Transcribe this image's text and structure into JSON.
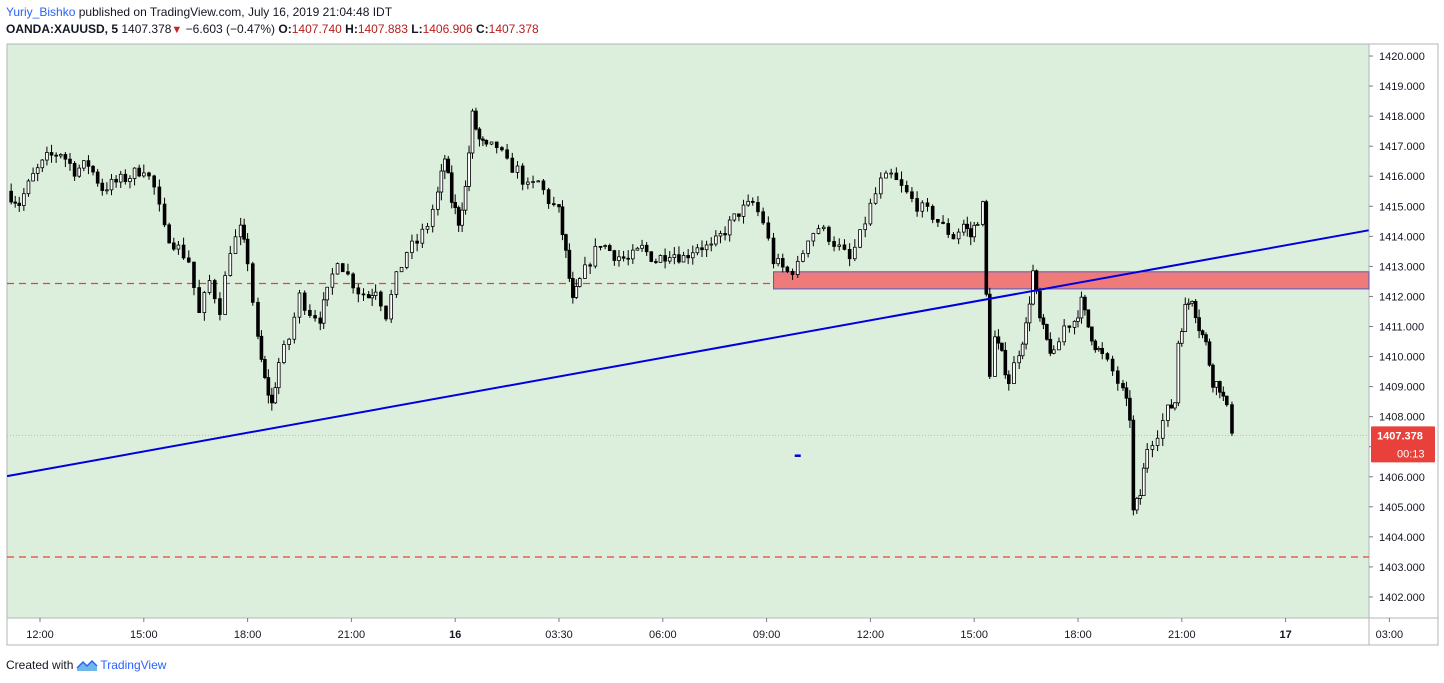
{
  "header": {
    "author": "Yuriy_Bishko",
    "published_text": "published on TradingView.com, July 16, 2019 21:04:48 IDT",
    "symbol": "OANDA:XAUUSD, 5",
    "last": "1407.378",
    "change": "−6.603 (−0.47%)",
    "open_label": "O:",
    "open": "1407.740",
    "high_label": "H:",
    "high": "1407.883",
    "low_label": "L:",
    "low": "1406.906",
    "close_label": "C:",
    "close": "1407.378"
  },
  "footer": {
    "created_with": "Created with",
    "brand": "TradingView",
    "logo_icon": "tradingview-logo-icon"
  },
  "colors": {
    "background": "#dcefdc",
    "candle": "#000000",
    "trendline": "#0000dd",
    "level_line": "#e8403a",
    "zone_fill": "#ee7a7a",
    "zone_border": "#4a5cc7",
    "price_tag": "#e8403a"
  },
  "chart_data": {
    "type": "candlestick",
    "symbol": "OANDA:XAUUSD",
    "timeframe": "5",
    "ylim": [
      1401.3,
      1420.4
    ],
    "y_ticks": [
      "1402.000",
      "1403.000",
      "1404.000",
      "1405.000",
      "1406.000",
      "1407.000",
      "1408.000",
      "1409.000",
      "1410.000",
      "1411.000",
      "1412.000",
      "1413.000",
      "1414.000",
      "1415.000",
      "1416.000",
      "1417.000",
      "1418.000",
      "1419.000",
      "1420.000"
    ],
    "x_ticks": [
      {
        "label": "12:00",
        "t": 0
      },
      {
        "label": "15:00",
        "t": 3
      },
      {
        "label": "18:00",
        "t": 6
      },
      {
        "label": "21:00",
        "t": 9
      },
      {
        "label": "16",
        "t": 12
      },
      {
        "label": "03:30",
        "t": 15
      },
      {
        "label": "06:00",
        "t": 18
      },
      {
        "label": "09:00",
        "t": 21
      },
      {
        "label": "12:00",
        "t": 24
      },
      {
        "label": "15:00",
        "t": 27
      },
      {
        "label": "18:00",
        "t": 30
      },
      {
        "label": "21:00",
        "t": 33
      },
      {
        "label": "17",
        "t": 36
      },
      {
        "label": "03:00",
        "t": 39
      }
    ],
    "current_price": "1407.378",
    "countdown": "00:13",
    "horizontal_levels": [
      1412.43,
      1403.33
    ],
    "resistance_zone": {
      "from_t": 21.2,
      "low": 1412.25,
      "high": 1412.82
    },
    "trendline": {
      "start": {
        "t": -0.95,
        "price": 1406.02
      },
      "end": {
        "t": 38.4,
        "price": 1414.2
      }
    },
    "marker": {
      "t": 21.9,
      "price": 1406.7
    },
    "path_points": [
      [
        -0.95,
        1415.5
      ],
      [
        -0.6,
        1415.1
      ],
      [
        -0.2,
        1416.0
      ],
      [
        0.2,
        1416.6
      ],
      [
        0.6,
        1416.8
      ],
      [
        1.0,
        1416.2
      ],
      [
        1.4,
        1416.4
      ],
      [
        1.8,
        1415.6
      ],
      [
        2.2,
        1415.8
      ],
      [
        2.6,
        1416.0
      ],
      [
        3.0,
        1416.3
      ],
      [
        3.3,
        1415.6
      ],
      [
        3.6,
        1414.2
      ],
      [
        4.0,
        1413.6
      ],
      [
        4.3,
        1413.2
      ],
      [
        4.6,
        1411.4
      ],
      [
        4.9,
        1412.5
      ],
      [
        5.2,
        1411.6
      ],
      [
        5.5,
        1413.6
      ],
      [
        5.8,
        1414.2
      ],
      [
        6.0,
        1413.2
      ],
      [
        6.3,
        1410.5
      ],
      [
        6.5,
        1409.2
      ],
      [
        6.7,
        1408.4
      ],
      [
        6.9,
        1409.8
      ],
      [
        7.2,
        1410.6
      ],
      [
        7.5,
        1412.0
      ],
      [
        7.8,
        1411.5
      ],
      [
        8.1,
        1411.3
      ],
      [
        8.3,
        1412.1
      ],
      [
        8.6,
        1413.3
      ],
      [
        8.9,
        1412.7
      ],
      [
        9.2,
        1412.2
      ],
      [
        9.5,
        1412.0
      ],
      [
        9.7,
        1412.3
      ],
      [
        10.0,
        1411.4
      ],
      [
        10.3,
        1412.6
      ],
      [
        10.6,
        1413.5
      ],
      [
        10.9,
        1413.8
      ],
      [
        11.2,
        1414.4
      ],
      [
        11.5,
        1415.4
      ],
      [
        11.7,
        1416.6
      ],
      [
        11.9,
        1415.2
      ],
      [
        12.1,
        1414.5
      ],
      [
        12.3,
        1415.6
      ],
      [
        12.5,
        1418.0
      ],
      [
        12.7,
        1417.2
      ],
      [
        12.9,
        1416.9
      ],
      [
        13.2,
        1417.0
      ],
      [
        13.5,
        1416.4
      ],
      [
        13.8,
        1416.2
      ],
      [
        14.1,
        1415.6
      ],
      [
        14.4,
        1415.8
      ],
      [
        14.7,
        1415.2
      ],
      [
        15.0,
        1414.8
      ],
      [
        15.2,
        1413.4
      ],
      [
        15.4,
        1411.8
      ],
      [
        15.6,
        1412.5
      ],
      [
        15.9,
        1413.2
      ],
      [
        16.2,
        1413.8
      ],
      [
        16.6,
        1413.4
      ],
      [
        17.0,
        1413.2
      ],
      [
        17.4,
        1413.6
      ],
      [
        17.8,
        1413.2
      ],
      [
        18.2,
        1413.5
      ],
      [
        18.6,
        1413.3
      ],
      [
        19.0,
        1413.7
      ],
      [
        19.4,
        1413.6
      ],
      [
        19.8,
        1414.2
      ],
      [
        20.2,
        1414.8
      ],
      [
        20.6,
        1415.1
      ],
      [
        20.9,
        1414.5
      ],
      [
        21.2,
        1413.2
      ],
      [
        21.6,
        1412.8
      ],
      [
        21.9,
        1413.0
      ],
      [
        22.2,
        1414.0
      ],
      [
        22.5,
        1414.3
      ],
      [
        22.8,
        1414.0
      ],
      [
        23.1,
        1413.6
      ],
      [
        23.4,
        1413.2
      ],
      [
        23.7,
        1414.0
      ],
      [
        24.0,
        1415.0
      ],
      [
        24.3,
        1415.8
      ],
      [
        24.6,
        1416.0
      ],
      [
        24.9,
        1415.6
      ],
      [
        25.2,
        1415.2
      ],
      [
        25.5,
        1414.9
      ],
      [
        25.8,
        1414.7
      ],
      [
        26.1,
        1414.3
      ],
      [
        26.4,
        1414.0
      ],
      [
        26.7,
        1414.4
      ],
      [
        26.9,
        1414.0
      ],
      [
        27.1,
        1414.6
      ],
      [
        27.25,
        1415.0
      ],
      [
        27.35,
        1412.0
      ],
      [
        27.45,
        1409.5
      ],
      [
        27.6,
        1410.6
      ],
      [
        27.8,
        1410.0
      ],
      [
        28.0,
        1409.2
      ],
      [
        28.3,
        1410.2
      ],
      [
        28.5,
        1411.0
      ],
      [
        28.7,
        1412.8
      ],
      [
        28.9,
        1411.2
      ],
      [
        29.1,
        1410.5
      ],
      [
        29.3,
        1410.0
      ],
      [
        29.6,
        1411.0
      ],
      [
        29.9,
        1411.2
      ],
      [
        30.1,
        1411.8
      ],
      [
        30.3,
        1411.0
      ],
      [
        30.5,
        1410.4
      ],
      [
        30.7,
        1410.0
      ],
      [
        31.0,
        1409.5
      ],
      [
        31.3,
        1408.8
      ],
      [
        31.5,
        1408.0
      ],
      [
        31.6,
        1404.8
      ],
      [
        31.8,
        1405.4
      ],
      [
        32.0,
        1407.0
      ],
      [
        32.3,
        1407.5
      ],
      [
        32.6,
        1408.2
      ],
      [
        32.8,
        1408.5
      ],
      [
        32.9,
        1410.5
      ],
      [
        33.1,
        1411.6
      ],
      [
        33.3,
        1412.0
      ],
      [
        33.5,
        1411.0
      ],
      [
        33.7,
        1410.4
      ],
      [
        33.9,
        1409.2
      ],
      [
        34.1,
        1409.0
      ],
      [
        34.3,
        1408.2
      ],
      [
        34.45,
        1407.6
      ]
    ]
  }
}
